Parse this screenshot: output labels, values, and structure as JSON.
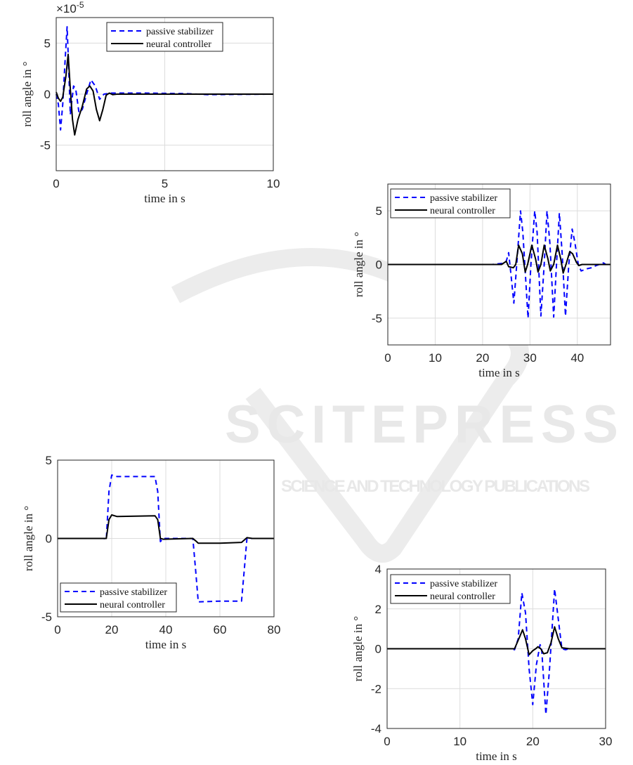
{
  "watermark": {
    "title": "SCITEPRESS",
    "subtitle": "SCIENCE AND TECHNOLOGY PUBLICATIONS"
  },
  "colors": {
    "passive": "#0000ff",
    "neural": "#000000",
    "grid": "#dcdcdc",
    "watermark": "#e6e6e6"
  },
  "chart_data": [
    {
      "type": "line",
      "xlabel": "time in s",
      "ylabel": "roll angle in °",
      "y_exponent_label": "×10",
      "y_exponent": "-5",
      "xlim": [
        0,
        10
      ],
      "ylim": [
        -7.5,
        7.5
      ],
      "xticks": [
        0,
        5,
        10
      ],
      "yticks": [
        -5,
        0,
        5
      ],
      "grid": true,
      "legend_position": "top-right",
      "series": [
        {
          "name": "passive stabilizer",
          "style": "dashed",
          "x": [
            0,
            0.1,
            0.2,
            0.3,
            0.4,
            0.5,
            0.55,
            0.65,
            0.8,
            0.9,
            1.05,
            1.2,
            1.4,
            1.6,
            1.8,
            2.0,
            2.2,
            2.5,
            4,
            6,
            7,
            10
          ],
          "y": [
            0,
            -1,
            -3.5,
            -1,
            3,
            6.6,
            4,
            -2,
            0.8,
            0.5,
            -1.8,
            -1.5,
            0,
            1.4,
            0.8,
            -0.5,
            0,
            0.1,
            0.1,
            0.05,
            -0.05,
            0
          ]
        },
        {
          "name": "neural controller",
          "style": "solid",
          "x": [
            0,
            0.1,
            0.2,
            0.3,
            0.45,
            0.55,
            0.65,
            0.75,
            0.85,
            1.0,
            1.2,
            1.4,
            1.55,
            1.7,
            1.85,
            2.0,
            2.15,
            2.3,
            2.45,
            2.6,
            2.8,
            10
          ],
          "y": [
            0.2,
            -0.4,
            -0.7,
            -0.3,
            1.8,
            3.9,
            0.5,
            -2.5,
            -4,
            -2.5,
            -1.2,
            0.5,
            0.8,
            0.3,
            -1.5,
            -2.6,
            -1.5,
            -0.1,
            0.1,
            -0.05,
            0,
            0
          ]
        }
      ]
    },
    {
      "type": "line",
      "xlabel": "time in s",
      "ylabel": "roll angle in °",
      "xlim": [
        0,
        47
      ],
      "ylim": [
        -7.5,
        7.5
      ],
      "xticks": [
        0,
        10,
        20,
        30,
        40
      ],
      "yticks": [
        -5,
        0,
        5
      ],
      "grid": true,
      "legend_position": "top-left",
      "series": [
        {
          "name": "passive stabilizer",
          "style": "dashed",
          "x": [
            0,
            22,
            23,
            24,
            25,
            25.5,
            26,
            26.6,
            27.2,
            28,
            28.5,
            29.6,
            30.2,
            31,
            31.5,
            32.3,
            33,
            33.6,
            34.2,
            35,
            35.6,
            36.2,
            36.8,
            37.5,
            38.2,
            38.9,
            39.5,
            40.2,
            40.8,
            42,
            43,
            44,
            45.5,
            46,
            47
          ],
          "y": [
            0,
            0,
            0.05,
            0.1,
            0.3,
            1.1,
            -1,
            -3.6,
            0,
            5,
            3,
            -5,
            0,
            5,
            3,
            -4.8,
            0,
            5,
            2,
            -4.9,
            0,
            4.8,
            1,
            -4.8,
            0,
            3.3,
            2,
            0,
            -0.6,
            -0.4,
            -0.3,
            -0.1,
            0.15,
            0,
            0
          ]
        },
        {
          "name": "neural controller",
          "style": "solid",
          "x": [
            0,
            24,
            25,
            25.5,
            26.5,
            27,
            27.6,
            28.4,
            29,
            29.5,
            30.4,
            31.2,
            31.7,
            32.3,
            33,
            33.8,
            34.3,
            35,
            35.8,
            36.5,
            37,
            37.6,
            38.4,
            39,
            39.8,
            40.3,
            41,
            47
          ],
          "y": [
            0,
            0,
            0.3,
            -0.2,
            -0.3,
            0,
            1.8,
            1,
            -0.7,
            0,
            1.8,
            0.5,
            -0.7,
            0,
            1.8,
            0.5,
            -0.6,
            0,
            1.8,
            0.5,
            -0.8,
            0,
            1.2,
            1,
            0.2,
            -0.1,
            0,
            0
          ]
        }
      ]
    },
    {
      "type": "line",
      "xlabel": "time in s",
      "ylabel": "roll angle in °",
      "xlim": [
        0,
        80
      ],
      "ylim": [
        -5,
        5
      ],
      "xticks": [
        0,
        20,
        40,
        60,
        80
      ],
      "yticks": [
        -5,
        0,
        5
      ],
      "grid": true,
      "legend_position": "bottom-left",
      "series": [
        {
          "name": "passive stabilizer",
          "style": "dashed",
          "x": [
            0,
            17,
            18,
            19,
            20,
            22,
            36,
            37,
            38,
            39,
            50,
            51,
            52,
            60,
            68,
            69,
            70,
            72,
            80
          ],
          "y": [
            0,
            0,
            -0.05,
            3,
            4.05,
            3.95,
            3.95,
            3,
            -0.2,
            0,
            0,
            -2,
            -4.05,
            -4,
            -4,
            -2,
            0,
            0,
            0
          ]
        },
        {
          "name": "neural controller",
          "style": "solid",
          "x": [
            0,
            18,
            19,
            20,
            22,
            36,
            37,
            38,
            39,
            50,
            51,
            52,
            60,
            68,
            69,
            70,
            72,
            80
          ],
          "y": [
            0,
            0,
            1.2,
            1.5,
            1.4,
            1.45,
            1.2,
            0,
            -0.05,
            0,
            -0.15,
            -0.3,
            -0.3,
            -0.25,
            -0.1,
            0.05,
            0,
            0
          ]
        }
      ]
    },
    {
      "type": "line",
      "xlabel": "time in s",
      "ylabel": "roll angle in °",
      "xlim": [
        0,
        30
      ],
      "ylim": [
        -4,
        4
      ],
      "xticks": [
        0,
        10,
        20,
        30
      ],
      "yticks": [
        -4,
        -2,
        0,
        2,
        4
      ],
      "grid": true,
      "legend_position": "top-left",
      "series": [
        {
          "name": "passive stabilizer",
          "style": "dashed",
          "x": [
            0,
            17,
            17.5,
            18,
            18.5,
            19,
            19.5,
            20,
            20.5,
            21,
            21.2,
            21.8,
            22.3,
            23,
            23.5,
            24,
            24.5,
            25,
            30
          ],
          "y": [
            0,
            0,
            -0.05,
            0.5,
            2.8,
            1.8,
            -1,
            -2.8,
            -0.8,
            0.2,
            0.1,
            -3.3,
            -1,
            3,
            1.5,
            0,
            -0.05,
            0,
            0
          ]
        },
        {
          "name": "neural controller",
          "style": "solid",
          "x": [
            0,
            17.5,
            18.2,
            18.6,
            19,
            19.5,
            20,
            20.4,
            20.7,
            21.1,
            21.5,
            22,
            22.5,
            23,
            23.5,
            24,
            25,
            30
          ],
          "y": [
            0,
            0,
            0.6,
            0.95,
            0.5,
            -0.3,
            -0.1,
            0,
            0.1,
            0,
            -0.25,
            -0.2,
            0.3,
            1.1,
            0.5,
            0.05,
            0,
            0
          ]
        }
      ]
    }
  ]
}
